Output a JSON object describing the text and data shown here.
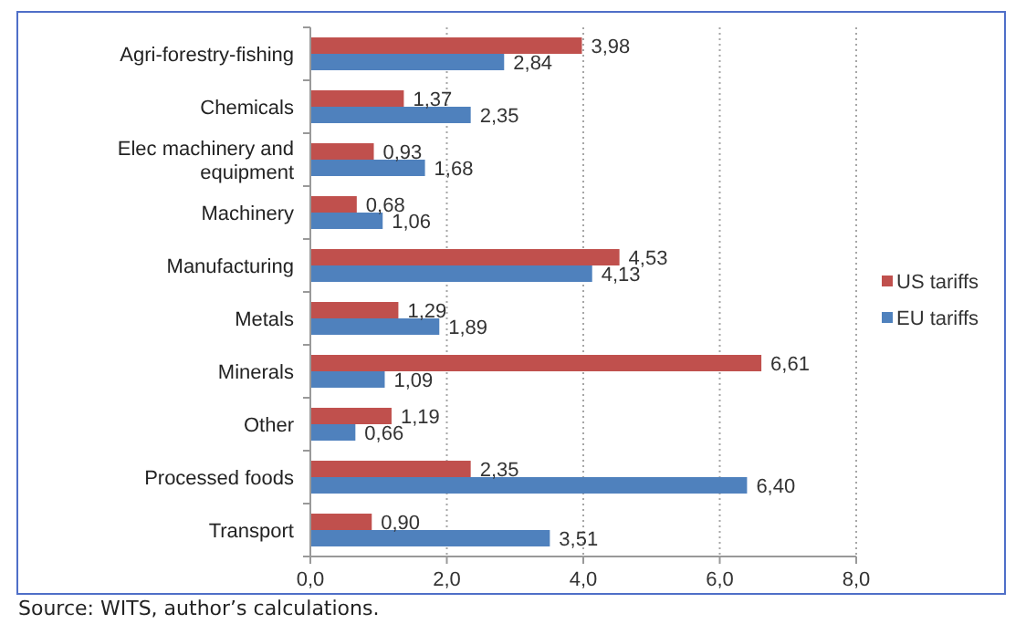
{
  "chart_data": {
    "type": "bar",
    "orientation": "horizontal",
    "categories": [
      "Agri-forestry-fishing",
      "Chemicals",
      "Elec machinery and equipment",
      "Machinery",
      "Manufacturing",
      "Metals",
      "Minerals",
      "Other",
      "Processed foods",
      "Transport"
    ],
    "series": [
      {
        "name": "US tariffs",
        "color": "#c0504d",
        "values": [
          3.98,
          1.37,
          0.93,
          0.68,
          4.53,
          1.29,
          6.61,
          1.19,
          2.35,
          0.9
        ],
        "value_labels": [
          "3,98",
          "1,37",
          "0,93",
          "0,68",
          "4,53",
          "1,29",
          "6,61",
          "1,19",
          "2,35",
          "0,90"
        ]
      },
      {
        "name": "EU tariffs",
        "color": "#4f81bd",
        "values": [
          2.84,
          2.35,
          1.68,
          1.06,
          4.13,
          1.89,
          1.09,
          0.66,
          6.4,
          3.51
        ],
        "value_labels": [
          "2,84",
          "2,35",
          "1,68",
          "1,06",
          "4,13",
          "1,89",
          "1,09",
          "0,66",
          "6,40",
          "3,51"
        ]
      }
    ],
    "xlim": [
      0,
      8
    ],
    "xticks": [
      {
        "value": 0,
        "label": "0,0"
      },
      {
        "value": 2,
        "label": "2,0"
      },
      {
        "value": 4,
        "label": "4,0"
      },
      {
        "value": 6,
        "label": "6,0"
      },
      {
        "value": 8,
        "label": "8,0"
      }
    ],
    "grid": "x",
    "legend": "right",
    "annotations": [
      "Source: WITS, author’s calculations."
    ]
  }
}
